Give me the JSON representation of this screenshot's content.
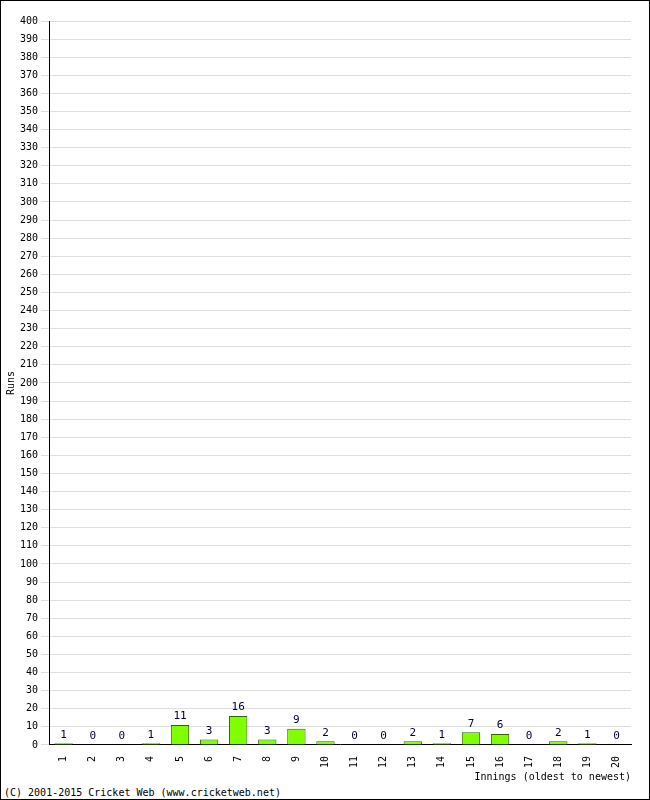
{
  "chart_data": {
    "type": "bar",
    "x_label": "Innings (oldest to newest)",
    "y_label": "Runs",
    "annotations": [
      "(C) 2001-2015 Cricket Web (www.cricketweb.net)"
    ],
    "categories": [
      "1",
      "2",
      "3",
      "4",
      "5",
      "6",
      "7",
      "8",
      "9",
      "10",
      "11",
      "12",
      "13",
      "14",
      "15",
      "16",
      "17",
      "18",
      "19",
      "20"
    ],
    "values": [
      1,
      0,
      0,
      1,
      11,
      3,
      16,
      3,
      9,
      2,
      0,
      0,
      2,
      1,
      7,
      6,
      0,
      2,
      1,
      0
    ],
    "color": "#80ff00",
    "ylim": [
      0,
      400
    ],
    "yticks": [
      0,
      10,
      20,
      30,
      40,
      50,
      60,
      70,
      80,
      90,
      100,
      110,
      120,
      130,
      140,
      150,
      160,
      170,
      180,
      190,
      200,
      210,
      220,
      230,
      240,
      250,
      260,
      270,
      280,
      290,
      300,
      310,
      320,
      330,
      340,
      350,
      360,
      370,
      380,
      390,
      400
    ],
    "grid": true,
    "data_labels": true
  }
}
